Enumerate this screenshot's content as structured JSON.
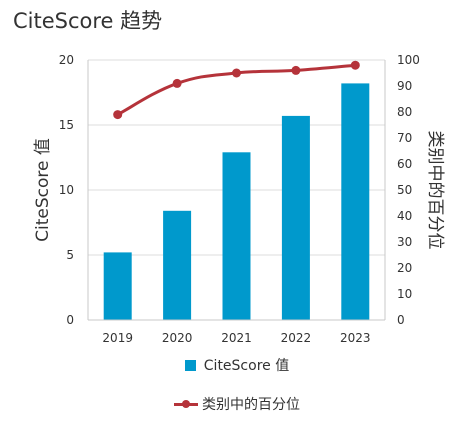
{
  "chart_data": {
    "type": "bar+line",
    "title": "CiteScore 趋势",
    "categories": [
      "2019",
      "2020",
      "2021",
      "2022",
      "2023"
    ],
    "series": [
      {
        "name": "CiteScore 值",
        "type": "bar",
        "axis": "left",
        "values": [
          5.2,
          8.4,
          12.9,
          15.7,
          18.2
        ]
      },
      {
        "name": "类别中的百分位",
        "type": "line",
        "axis": "right",
        "values": [
          79,
          91,
          95,
          96,
          98
        ]
      }
    ],
    "ylabel_left": "CiteScore 值",
    "ylabel_right": "类别中的百分位",
    "ylim_left": [
      0,
      20
    ],
    "ylim_right": [
      0,
      100
    ],
    "yticks_left": [
      0,
      5,
      10,
      15,
      20
    ],
    "yticks_right": [
      0,
      10,
      20,
      30,
      40,
      50,
      60,
      70,
      80,
      90,
      100
    ],
    "grid": true,
    "legend_position": "bottom",
    "colors": {
      "bar": "#0099CC",
      "line": "#B5333A",
      "grid": "#DDDDDD",
      "axis": "#C8C8C8"
    }
  }
}
